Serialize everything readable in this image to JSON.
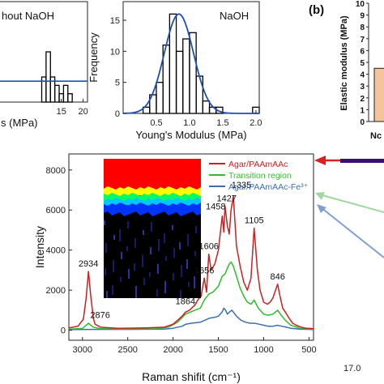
{
  "chart_data": [
    {
      "type": "bar",
      "title": "",
      "legend_label": "Without NaOH",
      "legend_visible_text": "hout NaOH",
      "xlabel_visible": "s (MPa)",
      "ylabel": "",
      "xlim": [
        0,
        21
      ],
      "ylim": [
        0,
        12
      ],
      "x_ticks": [
        "15",
        "20"
      ],
      "bins": [
        {
          "x0": 10.5,
          "x1": 11.5,
          "count": 3
        },
        {
          "x0": 11.5,
          "x1": 12.5,
          "count": 6
        },
        {
          "x0": 12.5,
          "x1": 13.5,
          "count": 3
        },
        {
          "x0": 13.5,
          "x1": 14.5,
          "count": 2
        },
        {
          "x0": 14.5,
          "x1": 15.5,
          "count": 1
        },
        {
          "x0": 15.5,
          "x1": 16.5,
          "count": 2
        },
        {
          "x0": 16.5,
          "x1": 17.5,
          "count": 1
        }
      ],
      "fit_level": 2.5,
      "colors": {
        "bars": "#000000",
        "fit": "#1f4fb0"
      }
    },
    {
      "type": "bar",
      "title": "",
      "legend_label": "NaOH",
      "xlabel": "Young's Modulus (MPa)",
      "ylabel": "Frequency",
      "xlim": [
        0,
        2.05
      ],
      "ylim": [
        0,
        18
      ],
      "x_ticks": [
        "0.5",
        "1.0",
        "1.5",
        "2.0"
      ],
      "y_ticks": [
        "0",
        "5",
        "10",
        "15"
      ],
      "bins": [
        {
          "x0": 0.3,
          "x1": 0.4,
          "count": 1
        },
        {
          "x0": 0.4,
          "x1": 0.5,
          "count": 3
        },
        {
          "x0": 0.5,
          "x1": 0.6,
          "count": 5
        },
        {
          "x0": 0.6,
          "x1": 0.7,
          "count": 11
        },
        {
          "x0": 0.7,
          "x1": 0.8,
          "count": 16
        },
        {
          "x0": 0.8,
          "x1": 0.9,
          "count": 10
        },
        {
          "x0": 0.9,
          "x1": 1.0,
          "count": 12
        },
        {
          "x0": 1.0,
          "x1": 1.1,
          "count": 13
        },
        {
          "x0": 1.1,
          "x1": 1.2,
          "count": 6
        },
        {
          "x0": 1.2,
          "x1": 1.3,
          "count": 2
        },
        {
          "x0": 1.3,
          "x1": 1.4,
          "count": 1
        },
        {
          "x0": 1.4,
          "x1": 1.5,
          "count": 1
        },
        {
          "x0": 1.95,
          "x1": 2.05,
          "count": 1
        }
      ],
      "fit": {
        "type": "gaussian",
        "mean": 0.84,
        "sigma": 0.22,
        "peak": 16
      },
      "colors": {
        "bars": "#000000",
        "fit": "#1f4fb0"
      }
    },
    {
      "type": "bar",
      "panel_label": "(b)",
      "ylabel": "Elastic modulus (MPa)",
      "ylim": [
        0,
        10
      ],
      "y_ticks": [
        "0",
        "1",
        "2",
        "3",
        "4",
        "5",
        "6",
        "7",
        "8",
        "9",
        "10"
      ],
      "categories_visible": [
        "Nc"
      ],
      "values": [
        4.5
      ],
      "colors": {
        "bar": "#f5c49a",
        "bar_edge": "#222222"
      }
    },
    {
      "type": "line",
      "xlabel": "Raman shifit (cm⁻¹)",
      "ylabel": "Intensity",
      "xlim": [
        3150,
        450
      ],
      "ylim": [
        -500,
        8800
      ],
      "x_ticks": [
        "3000",
        "2500",
        "2000",
        "1500",
        "1000",
        "500"
      ],
      "y_ticks": [
        "0",
        "2000",
        "4000",
        "6000",
        "8000"
      ],
      "series": [
        {
          "name": "Agar/PAAmAAc",
          "color": "#cc2020",
          "x": [
            3150,
            3050,
            2990,
            2960,
            2934,
            2910,
            2880,
            2860,
            2800,
            2600,
            2300,
            2100,
            2000,
            1950,
            1900,
            1864,
            1820,
            1760,
            1720,
            1690,
            1656,
            1630,
            1606,
            1580,
            1540,
            1500,
            1458,
            1440,
            1427,
            1400,
            1380,
            1360,
            1335,
            1300,
            1260,
            1220,
            1180,
            1140,
            1105,
            1070,
            1040,
            1000,
            960,
            930,
            900,
            846,
            820,
            790,
            760,
            720,
            680,
            640,
            600,
            560,
            520,
            480,
            450
          ],
          "y": [
            120,
            200,
            550,
            1600,
            2934,
            1800,
            600,
            300,
            150,
            100,
            120,
            150,
            300,
            500,
            700,
            900,
            1000,
            1250,
            1550,
            1700,
            2600,
            1900,
            3800,
            3000,
            3300,
            4000,
            5700,
            4900,
            6200,
            5200,
            4800,
            6000,
            6700,
            4200,
            3200,
            2400,
            2000,
            2600,
            5100,
            3000,
            2000,
            1400,
            1300,
            1400,
            1600,
            2300,
            1700,
            1100,
            900,
            600,
            350,
            250,
            180,
            120,
            100,
            90,
            80
          ]
        },
        {
          "name": "Transition region",
          "color": "#2ebd2e",
          "x": [
            3150,
            3000,
            2934,
            2880,
            2800,
            2500,
            2200,
            2050,
            1950,
            1864,
            1760,
            1700,
            1656,
            1606,
            1560,
            1500,
            1458,
            1427,
            1400,
            1380,
            1360,
            1335,
            1300,
            1260,
            1220,
            1180,
            1140,
            1105,
            1060,
            1000,
            950,
            900,
            846,
            800,
            750,
            700,
            600,
            500,
            450
          ],
          "y": [
            50,
            90,
            350,
            150,
            80,
            60,
            80,
            150,
            400,
            800,
            1000,
            1100,
            1500,
            1800,
            1900,
            2200,
            2700,
            2800,
            3100,
            3300,
            3400,
            3200,
            2700,
            2100,
            1700,
            1400,
            1300,
            1500,
            1100,
            800,
            750,
            800,
            1000,
            700,
            450,
            250,
            100,
            60,
            50
          ]
        },
        {
          "name": "Agar/PAAmAAc-Fe³⁺",
          "color": "#3a70b0",
          "x": [
            3150,
            2900,
            2500,
            2100,
            2000,
            1900,
            1860,
            1800,
            1700,
            1650,
            1600,
            1540,
            1500,
            1460,
            1440,
            1420,
            1400,
            1380,
            1350,
            1300,
            1250,
            1200,
            1150,
            1100,
            1050,
            1000,
            950,
            900,
            850,
            800,
            750,
            700,
            600,
            500,
            450
          ],
          "y": [
            30,
            40,
            40,
            60,
            100,
            200,
            300,
            350,
            400,
            500,
            600,
            650,
            700,
            900,
            1100,
            1000,
            800,
            900,
            1000,
            700,
            500,
            400,
            350,
            350,
            300,
            250,
            200,
            200,
            250,
            200,
            150,
            100,
            60,
            40,
            30
          ]
        }
      ],
      "peak_labels": [
        "2934",
        "2876",
        "1864",
        "1656",
        "1606",
        "1458",
        "1427",
        "1335",
        "1105",
        "846"
      ],
      "inset": {
        "type": "heatmap",
        "colors": [
          "#ff0000",
          "#ffff00",
          "#00ff66",
          "#00c8ff",
          "#0033ff",
          "#000000"
        ]
      },
      "colorbar_tick": "17.0",
      "arrows": [
        {
          "color": "#dd2020"
        },
        {
          "color": "#8fd08f"
        },
        {
          "color": "#6f8fbf"
        }
      ]
    }
  ]
}
